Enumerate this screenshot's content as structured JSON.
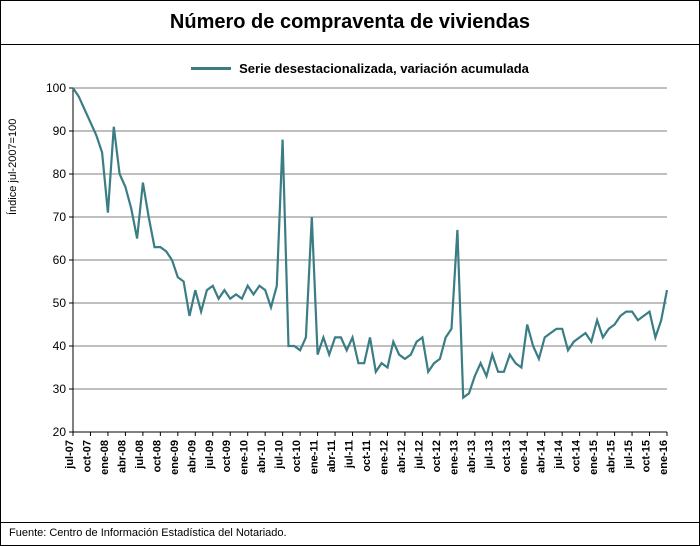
{
  "title": "Número de compraventa de viviendas",
  "legend_label": "Serie desestacionalizada, variación acumulada",
  "yaxis_label": "Índice jul-2007=100",
  "source": "Fuente: Centro de Información Estadística del Notariado.",
  "chart": {
    "type": "line",
    "line_color": "#3b7d84",
    "line_width": 2.2,
    "background_color": "#ffffff",
    "grid_color": "#000000",
    "axis_color": "#000000",
    "title_fontsize": 20,
    "label_fontsize": 11,
    "ytick_fontsize": 12,
    "xtick_fontsize": 11,
    "ylim": [
      20,
      100
    ],
    "ytick_step": 10,
    "yticks": [
      20,
      30,
      40,
      50,
      60,
      70,
      80,
      90,
      100
    ],
    "x_categories": [
      "jul-07",
      "ago-07",
      "sep-07",
      "oct-07",
      "nov-07",
      "dic-07",
      "ene-08",
      "feb-08",
      "mar-08",
      "abr-08",
      "may-08",
      "jun-08",
      "jul-08",
      "ago-08",
      "sep-08",
      "oct-08",
      "nov-08",
      "dic-08",
      "ene-09",
      "feb-09",
      "mar-09",
      "abr-09",
      "may-09",
      "jun-09",
      "jul-09",
      "ago-09",
      "sep-09",
      "oct-09",
      "nov-09",
      "dic-09",
      "ene-10",
      "feb-10",
      "mar-10",
      "abr-10",
      "may-10",
      "jun-10",
      "jul-10",
      "ago-10",
      "sep-10",
      "oct-10",
      "nov-10",
      "dic-10",
      "ene-11",
      "feb-11",
      "mar-11",
      "abr-11",
      "may-11",
      "jun-11",
      "jul-11",
      "ago-11",
      "sep-11",
      "oct-11",
      "nov-11",
      "dic-11",
      "ene-12",
      "feb-12",
      "mar-12",
      "abr-12",
      "may-12",
      "jun-12",
      "jul-12",
      "ago-12",
      "sep-12",
      "oct-12",
      "nov-12",
      "dic-12",
      "ene-13",
      "feb-13",
      "mar-13",
      "abr-13",
      "may-13",
      "jun-13",
      "jul-13",
      "ago-13",
      "sep-13",
      "oct-13",
      "nov-13",
      "dic-13",
      "ene-14",
      "feb-14",
      "mar-14",
      "abr-14",
      "may-14",
      "jun-14",
      "jul-14",
      "ago-14",
      "sep-14",
      "oct-14",
      "nov-14",
      "dic-14",
      "ene-15",
      "feb-15",
      "mar-15",
      "abr-15",
      "may-15",
      "jun-15",
      "jul-15",
      "ago-15",
      "sep-15",
      "oct-15",
      "nov-15",
      "dic-15",
      "ene-16"
    ],
    "x_tick_labels": [
      "jul-07",
      "oct-07",
      "ene-08",
      "abr-08",
      "jul-08",
      "oct-08",
      "ene-09",
      "abr-09",
      "jul-09",
      "oct-09",
      "ene-10",
      "abr-10",
      "jul-10",
      "oct-10",
      "ene-11",
      "abr-11",
      "jul-11",
      "oct-11",
      "ene-12",
      "abr-12",
      "jul-12",
      "oct-12",
      "ene-13",
      "abr-13",
      "jul-13",
      "oct-13",
      "ene-14",
      "abr-14",
      "jul-14",
      "oct-14",
      "ene-15",
      "abr-15",
      "jul-15",
      "oct-15",
      "ene-16"
    ],
    "x_tick_every": 3,
    "values": [
      100,
      98,
      95,
      92,
      89,
      85,
      71,
      91,
      80,
      77,
      72,
      65,
      78,
      70,
      63,
      63,
      62,
      60,
      56,
      55,
      47,
      53,
      48,
      53,
      54,
      51,
      53,
      51,
      52,
      51,
      54,
      52,
      54,
      53,
      49,
      54,
      88,
      40,
      40,
      39,
      42,
      70,
      38,
      42,
      38,
      42,
      42,
      39,
      42,
      36,
      36,
      42,
      34,
      36,
      35,
      41,
      38,
      37,
      38,
      41,
      42,
      34,
      36,
      37,
      42,
      44,
      67,
      28,
      29,
      33,
      36,
      33,
      38,
      34,
      34,
      38,
      36,
      35,
      45,
      40,
      37,
      42,
      43,
      44,
      44,
      39,
      41,
      42,
      43,
      41,
      46,
      42,
      44,
      45,
      47,
      48,
      48,
      46,
      47,
      48,
      42,
      46,
      53
    ]
  }
}
